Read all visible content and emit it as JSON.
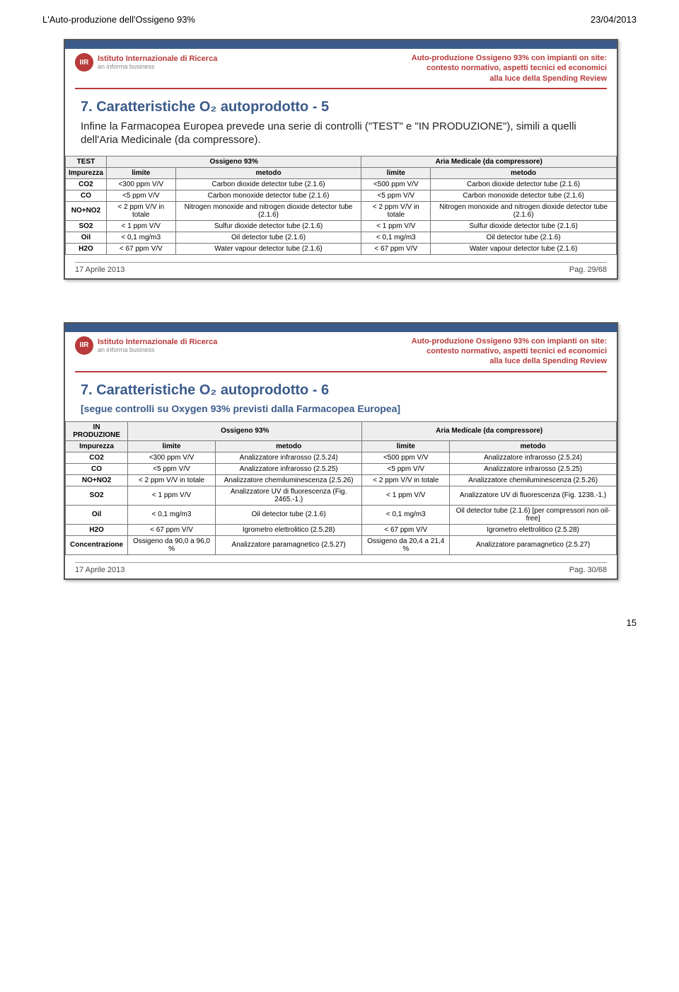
{
  "doc_header_left": "L'Auto-produzione dell'Ossigeno 93%",
  "doc_header_right": "23/04/2013",
  "page_number": "15",
  "logo": {
    "initials": "IIR",
    "name": "Istituto Internazionale di Ricerca",
    "sub": "an informa business"
  },
  "meta": {
    "line1": "Auto-produzione Ossigeno 93% con impianti on site:",
    "line2": "contesto normativo, aspetti tecnici ed economici",
    "line3": "alla luce della Spending Review"
  },
  "slide1": {
    "title": "7. Caratteristiche O₂ autoprodotto - 5",
    "body": "Infine la Farmacopea Europea prevede una serie di controlli (\"TEST\" e \"IN PRODUZIONE\"), simili a quelli dell'Aria Medicinale (da compressore).",
    "footer_left": "17 Aprile 2013",
    "footer_right": "Pag. 29/68",
    "table": {
      "corner": "TEST",
      "col_group1": "Ossigeno 93%",
      "col_group2": "Aria Medicale (da compressore)",
      "hdr_imp": "Impurezza",
      "hdr_lim": "limite",
      "hdr_met": "metodo",
      "rows": [
        {
          "imp": "CO2",
          "l1": "<300 ppm V/V",
          "m1": "Carbon dioxide detector tube  (2.1.6)",
          "l2": "<500 ppm V/V",
          "m2": "Carbon dioxide detector tube  (2.1.6)"
        },
        {
          "imp": "CO",
          "l1": "<5 ppm V/V",
          "m1": "Carbon monoxide detector tube  (2.1.6)",
          "l2": "<5 ppm V/V",
          "m2": "Carbon monoxide detector tube  (2.1.6)"
        },
        {
          "imp": "NO+NO2",
          "l1": "< 2 ppm V/V in totale",
          "m1": "Nitrogen monoxide and nitrogen dioxide detector tube  (2.1.6)",
          "l2": "< 2 ppm V/V in totale",
          "m2": "Nitrogen monoxide and nitrogen dioxide detector tube  (2.1.6)"
        },
        {
          "imp": "SO2",
          "l1": "< 1 ppm V/V",
          "m1": "Sulfur dioxide detector tube  (2.1.6)",
          "l2": "< 1 ppm V/V",
          "m2": "Sulfur dioxide detector tube  (2.1.6)"
        },
        {
          "imp": "Oil",
          "l1": "< 0,1 mg/m3",
          "m1": "Oil detector tube (2.1.6)",
          "l2": "< 0,1 mg/m3",
          "m2": "Oil detector tube (2.1.6)"
        },
        {
          "imp": "H2O",
          "l1": "< 67 ppm V/V",
          "m1": "Water vapour detector tube  (2.1.6)",
          "l2": "< 67 ppm V/V",
          "m2": "Water vapour detector tube  (2.1.6)"
        }
      ]
    }
  },
  "slide2": {
    "title": "7. Caratteristiche O₂ autoprodotto - 6",
    "subtitle": "[segue controlli su Oxygen 93% previsti dalla Farmacopea Europea]",
    "footer_left": "17 Aprile 2013",
    "footer_right": "Pag. 30/68",
    "table": {
      "corner": "IN PRODUZIONE",
      "col_group1": "Ossigeno 93%",
      "col_group2": "Aria Medicale (da compressore)",
      "hdr_imp": "Impurezza",
      "hdr_lim": "limite",
      "hdr_met": "metodo",
      "rows": [
        {
          "imp": "CO2",
          "l1": "<300 ppm V/V",
          "m1": "Analizzatore infrarosso (2.5.24)",
          "l2": "<500 ppm V/V",
          "m2": "Analizzatore infrarosso (2.5.24)"
        },
        {
          "imp": "CO",
          "l1": "<5 ppm V/V",
          "m1": "Analizzatore infrarosso (2.5.25)",
          "l2": "<5 ppm V/V",
          "m2": "Analizzatore infrarosso (2.5.25)"
        },
        {
          "imp": "NO+NO2",
          "l1": "< 2 ppm V/V in totale",
          "m1": "Analizzatore chemiluminescenza (2.5.26)",
          "l2": "< 2 ppm V/V in totale",
          "m2": "Analizzatore chemiluminescenza (2.5.26)"
        },
        {
          "imp": "SO2",
          "l1": "< 1 ppm V/V",
          "m1": "Analizzatore UV di fluorescenza (Fig. 2465.-1.)",
          "l2": "< 1 ppm V/V",
          "m2": "Analizzatore UV di fluorescenza (Fig. 1238.-1.)"
        },
        {
          "imp": "Oil",
          "l1": "< 0,1 mg/m3",
          "m1": "Oil detector tube (2.1.6)",
          "l2": "< 0,1 mg/m3",
          "m2": "Oil detector tube (2.1.6) [per compressori non oil-free]"
        },
        {
          "imp": "H2O",
          "l1": "< 67 ppm V/V",
          "m1": "Igrometro elettrolitico (2.5.28)",
          "l2": "< 67 ppm V/V",
          "m2": "Igrometro elettrolitico (2.5.28)"
        },
        {
          "imp": "Concentrazione",
          "l1": "Ossigeno da 90,0 a 96,0 %",
          "m1": "Analizzatore paramagnetico (2.5.27)",
          "l2": "Ossigeno da 20,4 a 21,4 %",
          "m2": "Analizzatore paramagnetico (2.5.27)"
        }
      ]
    }
  }
}
